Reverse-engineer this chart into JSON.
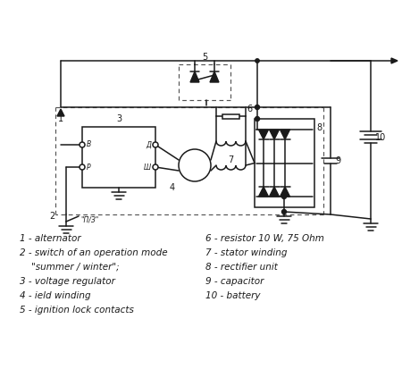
{
  "bg_color": "#ffffff",
  "line_color": "#1a1a1a",
  "labels_left": [
    "1 - alternator",
    "2 - switch of an operation mode",
    "    \"summer / winter\";",
    "3 - voltage regulator",
    "4 - ield winding",
    "5 - ignition lock contacts"
  ],
  "labels_right": [
    "6 - resistor 10 W, 75 Ohm",
    "7 - stator winding",
    "8 - rectifier unit",
    "9 - capacitor",
    "10 - battery"
  ]
}
